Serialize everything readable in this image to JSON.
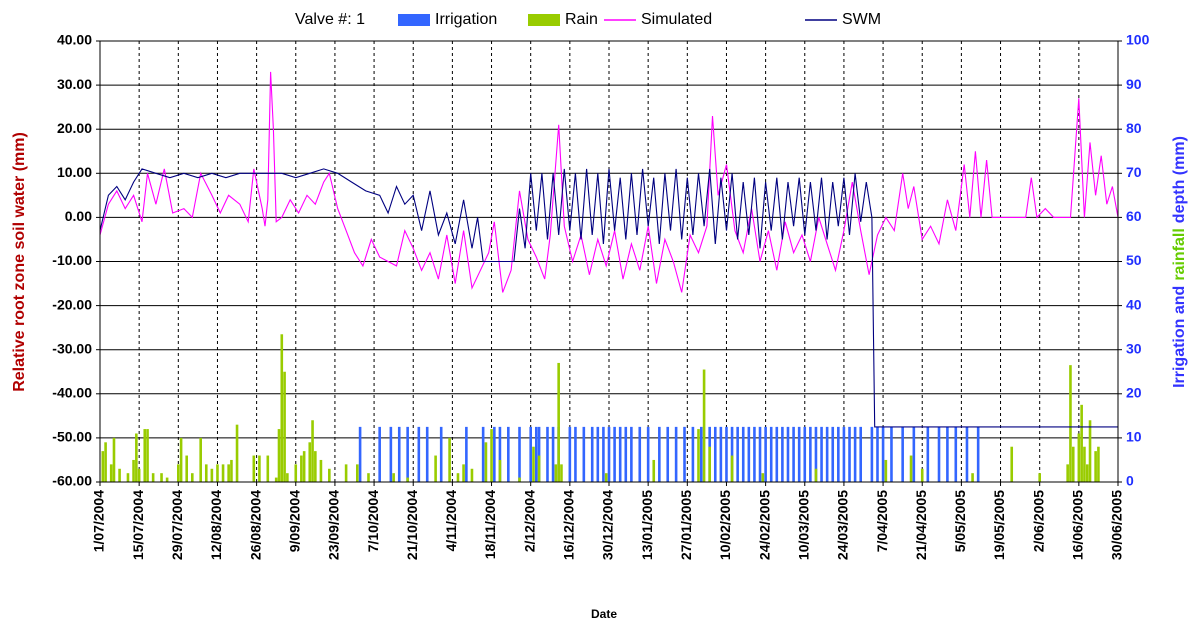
{
  "chart_data": {
    "type": "combo",
    "legend_title": "Valve #: 1",
    "xlabel": "Date",
    "ylabel": "Relative root zone soil water  (mm)",
    "y2label": [
      "Irrigation and",
      "rainfall",
      "depth (mm)"
    ],
    "xlim": [
      0,
      364
    ],
    "xticks": [
      {
        "value": 0,
        "label": "1/07/2004"
      },
      {
        "value": 14,
        "label": "15/07/2004"
      },
      {
        "value": 28,
        "label": "29/07/2004"
      },
      {
        "value": 42,
        "label": "12/08/2004"
      },
      {
        "value": 56,
        "label": "26/08/2004"
      },
      {
        "value": 70,
        "label": "9/09/2004"
      },
      {
        "value": 84,
        "label": "23/09/2004"
      },
      {
        "value": 98,
        "label": "7/10/2004"
      },
      {
        "value": 112,
        "label": "21/10/2004"
      },
      {
        "value": 126,
        "label": "4/11/2004"
      },
      {
        "value": 140,
        "label": "18/11/2004"
      },
      {
        "value": 154,
        "label": "2/12/2004"
      },
      {
        "value": 168,
        "label": "16/12/2004"
      },
      {
        "value": 182,
        "label": "30/12/2004"
      },
      {
        "value": 196,
        "label": "13/01/2005"
      },
      {
        "value": 210,
        "label": "27/01/2005"
      },
      {
        "value": 224,
        "label": "10/02/2005"
      },
      {
        "value": 238,
        "label": "24/02/2005"
      },
      {
        "value": 252,
        "label": "10/03/2005"
      },
      {
        "value": 266,
        "label": "24/03/2005"
      },
      {
        "value": 280,
        "label": "7/04/2005"
      },
      {
        "value": 294,
        "label": "21/04/2005"
      },
      {
        "value": 308,
        "label": "5/05/2005"
      },
      {
        "value": 322,
        "label": "19/05/2005"
      },
      {
        "value": 336,
        "label": "2/06/2005"
      },
      {
        "value": 350,
        "label": "16/06/2005"
      },
      {
        "value": 364,
        "label": "30/06/2005"
      }
    ],
    "ylim": [
      -60,
      40
    ],
    "yticks": [
      {
        "value": -60,
        "label": "-60.00"
      },
      {
        "value": -50,
        "label": "-50.00"
      },
      {
        "value": -40,
        "label": "-40.00"
      },
      {
        "value": -30,
        "label": "-30.00"
      },
      {
        "value": -20,
        "label": "-20.00"
      },
      {
        "value": -10,
        "label": "-10.00"
      },
      {
        "value": 0,
        "label": "0.00"
      },
      {
        "value": 10,
        "label": "10.00"
      },
      {
        "value": 20,
        "label": "20.00"
      },
      {
        "value": 30,
        "label": "30.00"
      },
      {
        "value": 40,
        "label": "40.00"
      }
    ],
    "y2lim": [
      0,
      100
    ],
    "y2ticks": [
      0,
      10,
      20,
      30,
      40,
      50,
      60,
      70,
      80,
      90,
      100
    ],
    "grid": true,
    "series": [
      {
        "name": "Irrigation",
        "type": "bar",
        "axis": "y2",
        "color": "#3366ff",
        "x": [
          93,
          100,
          104,
          107,
          110,
          114,
          117,
          122,
          131,
          137,
          141,
          143,
          146,
          150,
          154,
          156,
          157,
          160,
          162,
          164,
          168,
          170,
          173,
          176,
          178,
          180,
          182,
          184,
          186,
          188,
          190,
          193,
          196,
          200,
          203,
          206,
          209,
          212,
          215,
          218,
          220,
          222,
          224,
          226,
          228,
          230,
          232,
          234,
          236,
          238,
          240,
          242,
          244,
          246,
          248,
          250,
          252,
          254,
          256,
          258,
          260,
          262,
          264,
          266,
          268,
          270,
          272,
          276,
          278,
          280,
          283,
          287,
          291,
          296,
          300,
          303,
          306,
          310,
          314
        ],
        "values": [
          12.5,
          12.5,
          12.5,
          12.5,
          12.5,
          12.5,
          12.5,
          12.5,
          12.5,
          12.5,
          12.5,
          12.5,
          12.5,
          12.5,
          12.5,
          12.5,
          12.5,
          12.5,
          12.5,
          12.5,
          12.5,
          12.5,
          12.5,
          12.5,
          12.5,
          12.5,
          12.5,
          12.5,
          12.5,
          12.5,
          12.5,
          12.5,
          12.5,
          12.5,
          12.5,
          12.5,
          12.5,
          12.5,
          12.5,
          12.5,
          12.5,
          12.5,
          12.5,
          12.5,
          12.5,
          12.5,
          12.5,
          12.5,
          12.5,
          12.5,
          12.5,
          12.5,
          12.5,
          12.5,
          12.5,
          12.5,
          12.5,
          12.5,
          12.5,
          12.5,
          12.5,
          12.5,
          12.5,
          12.5,
          12.5,
          12.5,
          12.5,
          12.5,
          12.5,
          12.5,
          12.5,
          12.5,
          12.5,
          12.5,
          12.5,
          12.5,
          12.5,
          12.5,
          12.5
        ]
      },
      {
        "name": "Rain",
        "type": "bar",
        "axis": "y2",
        "color": "#99cc00",
        "x": [
          1,
          2,
          4,
          5,
          7,
          10,
          12,
          13,
          14,
          16,
          17,
          19,
          22,
          24,
          28,
          29,
          31,
          33,
          36,
          38,
          40,
          42,
          44,
          46,
          47,
          49,
          55,
          57,
          60,
          63,
          64,
          65,
          66,
          67,
          70,
          72,
          73,
          75,
          76,
          77,
          79,
          82,
          88,
          92,
          96,
          105,
          110,
          120,
          125,
          128,
          130,
          133,
          138,
          140,
          143,
          150,
          155,
          157,
          163,
          164,
          165,
          181,
          198,
          214,
          216,
          218,
          226,
          237,
          256,
          281,
          290,
          294,
          312,
          326,
          336,
          346,
          347,
          348,
          350,
          351,
          352,
          353,
          354,
          356,
          357
        ],
        "values": [
          7,
          9,
          4,
          10,
          3,
          2,
          5,
          11,
          3,
          12,
          12,
          2,
          2,
          1,
          4,
          10,
          6,
          2,
          10,
          4,
          3,
          4,
          4,
          4,
          5,
          13,
          6,
          6,
          6,
          1,
          12,
          33.5,
          25,
          2,
          4,
          6,
          7,
          9,
          14,
          7,
          5,
          3,
          4,
          4,
          2,
          2,
          1,
          6,
          10,
          2,
          4,
          3,
          9,
          12,
          5,
          1,
          8,
          6,
          4,
          27,
          4,
          2,
          5,
          12,
          25.5,
          8,
          6,
          2,
          3,
          5,
          6,
          3,
          2,
          8,
          2,
          4,
          26.5,
          8,
          11,
          17.5,
          8,
          4,
          14,
          7,
          8
        ]
      },
      {
        "name": "Simulated",
        "type": "line",
        "color": "#ff00ff",
        "x": [
          0,
          3,
          6,
          9,
          12,
          15,
          17,
          20,
          23,
          26,
          30,
          33,
          36,
          40,
          43,
          46,
          50,
          53,
          55,
          58,
          59,
          60,
          61,
          62,
          63,
          65,
          68,
          71,
          74,
          77,
          80,
          82,
          85,
          88,
          91,
          94,
          97,
          100,
          103,
          106,
          109,
          112,
          115,
          118,
          121,
          124,
          127,
          130,
          133,
          136,
          139,
          141,
          144,
          147,
          150,
          153,
          156,
          159,
          161,
          164,
          166,
          169,
          172,
          175,
          178,
          181,
          184,
          187,
          190,
          193,
          196,
          199,
          202,
          205,
          208,
          211,
          214,
          217,
          219,
          221,
          224,
          227,
          230,
          233,
          236,
          239,
          242,
          245,
          248,
          251,
          254,
          257,
          260,
          263,
          266,
          269,
          272,
          275,
          278,
          281,
          284,
          287,
          289,
          291,
          294,
          297,
          300,
          303,
          306,
          309,
          311,
          313,
          315,
          317,
          319,
          322,
          325,
          328,
          331,
          333,
          335,
          338,
          341,
          344,
          347,
          350,
          352,
          354,
          356,
          358,
          360,
          362,
          364
        ],
        "values": [
          -4,
          3,
          6,
          2,
          5,
          -1,
          10,
          3,
          11,
          1,
          2,
          0,
          10,
          5,
          1,
          5,
          3,
          -1,
          11,
          2,
          -2,
          4,
          33,
          20,
          -1,
          0,
          4,
          1,
          5,
          3,
          8,
          10,
          2,
          -3,
          -8,
          -11,
          -5,
          -9,
          -10,
          -11,
          -3,
          -7,
          -12,
          -8,
          -14,
          -4,
          -15,
          -3,
          -16,
          -12,
          -8,
          -1,
          -17,
          -12,
          6,
          -5,
          -9,
          -14,
          -4,
          21,
          -2,
          -10,
          -4,
          -13,
          -5,
          -11,
          -3,
          -14,
          -6,
          -12,
          -2,
          -15,
          -5,
          -10,
          -17,
          -4,
          -8,
          -2,
          23,
          5,
          12,
          -3,
          -8,
          2,
          -10,
          -3,
          -12,
          -1,
          -8,
          -4,
          -10,
          0,
          -6,
          -12,
          -3,
          8,
          -3,
          -13,
          -4,
          0,
          -3,
          10,
          2,
          7,
          -5,
          -2,
          -6,
          4,
          -3,
          12,
          0,
          15,
          0,
          13,
          0,
          0,
          0,
          0,
          0,
          9,
          0,
          2,
          0,
          0,
          0,
          27,
          0,
          17,
          5,
          14,
          3,
          7,
          0
        ]
      },
      {
        "name": "SWM",
        "type": "line",
        "color": "#000080",
        "x": [
          0,
          3,
          6,
          9,
          12,
          15,
          20,
          25,
          30,
          35,
          40,
          45,
          50,
          55,
          60,
          65,
          70,
          75,
          80,
          85,
          90,
          95,
          100,
          103,
          106,
          109,
          112,
          115,
          118,
          121,
          124,
          127,
          130,
          133,
          135,
          137,
          140,
          144,
          148,
          150,
          152,
          154,
          156,
          158,
          160,
          162,
          164,
          166,
          168,
          170,
          172,
          174,
          176,
          178,
          180,
          182,
          184,
          186,
          188,
          190,
          192,
          194,
          196,
          198,
          200,
          202,
          204,
          206,
          208,
          210,
          212,
          214,
          216,
          218,
          220,
          222,
          224,
          226,
          228,
          230,
          232,
          234,
          236,
          238,
          240,
          242,
          244,
          246,
          248,
          250,
          252,
          254,
          256,
          258,
          260,
          262,
          264,
          266,
          268,
          270,
          272,
          274,
          276,
          277,
          364
        ],
        "values": [
          -3,
          5,
          7,
          4,
          8,
          11,
          10,
          9,
          10,
          9,
          10,
          9,
          10,
          10,
          10,
          10,
          9,
          10,
          11,
          10,
          8,
          6,
          5,
          1,
          7,
          3,
          5,
          -3,
          6,
          -4,
          1,
          -6,
          4,
          -7,
          0,
          -10,
          -10,
          -10,
          -10,
          2,
          -7,
          10,
          -3,
          10,
          -5,
          10,
          -4,
          11,
          -3,
          10,
          -5,
          11,
          -4,
          10,
          -6,
          11,
          -3,
          9,
          -5,
          10,
          -4,
          11,
          -2,
          9,
          -6,
          10,
          -3,
          11,
          -5,
          9,
          -4,
          10,
          -2,
          11,
          -6,
          9,
          -3,
          10,
          -5,
          8,
          -4,
          9,
          -7,
          8,
          -3,
          9,
          -5,
          8,
          -2,
          9,
          -4,
          8,
          -3,
          9,
          -5,
          8,
          -2,
          9,
          -4,
          10,
          -1,
          8,
          0,
          -47.5,
          -47.5
        ]
      }
    ]
  }
}
